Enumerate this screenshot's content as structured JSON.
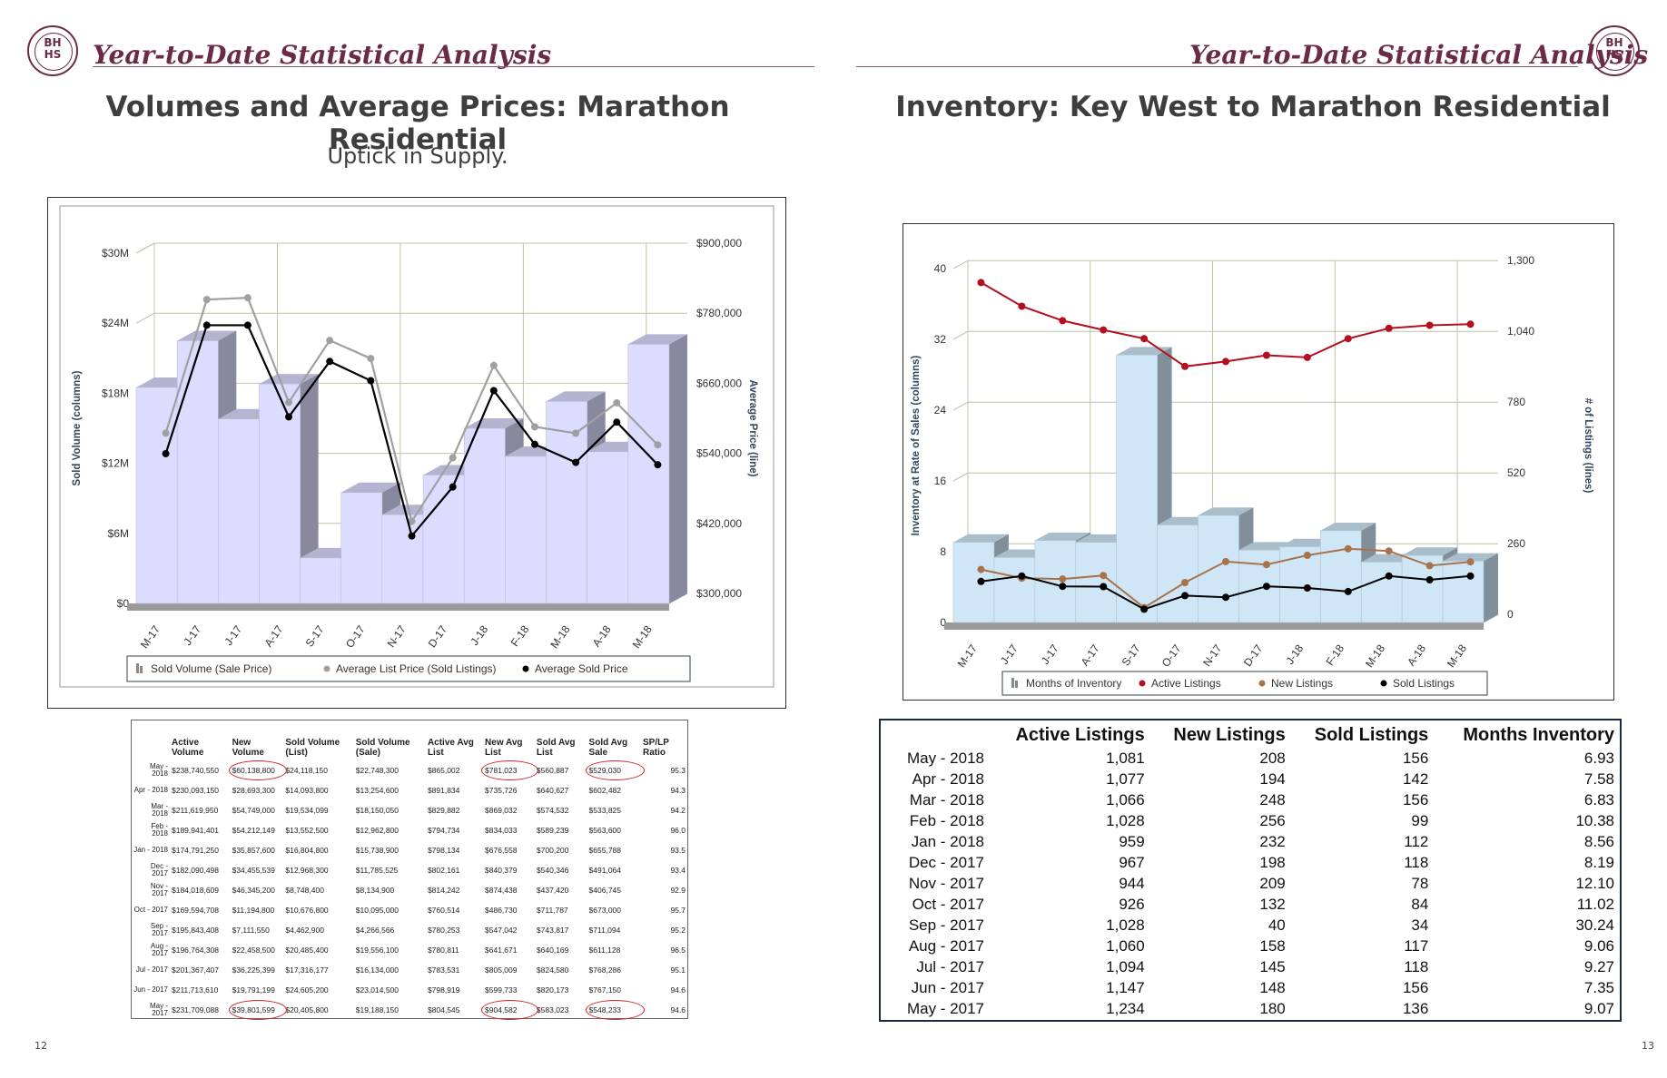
{
  "banner": {
    "title": "Year-to-Date Statistical Analysis",
    "logo_text": "BH\nHS"
  },
  "left_page": {
    "title": "Volumes and Average Prices:  Marathon Residential",
    "subtitle": "Uptick in Supply.",
    "page_number": "12"
  },
  "right_page": {
    "title": "Inventory:  Key West to Marathon Residential",
    "page_number": "13"
  },
  "colors": {
    "brand": "#6b2a45",
    "bars_left": "#dcdcff",
    "bars_right": "#cfe6f7",
    "active": "#b30f1e",
    "new": "#a8734a",
    "sold": "#000000",
    "list_line": "#a0a0a0",
    "circle": "#cc2222"
  },
  "chart_data": [
    {
      "type": "bar",
      "categories": [
        "M-17",
        "J-17",
        "J-17",
        "A-17",
        "S-17",
        "O-17",
        "N-17",
        "D-17",
        "J-18",
        "F-18",
        "M-18",
        "A-18",
        "M-18"
      ],
      "ylabel": "Sold Volume (columns)",
      "y2label": "Average Price (line)",
      "y_ticks": [
        "$0",
        "$6M",
        "$12M",
        "$18M",
        "$24M",
        "$30M"
      ],
      "y2_ticks": [
        "$300,000",
        "$420,000",
        "$540,000",
        "$660,000",
        "$780,000",
        "$900,000"
      ],
      "ylim": [
        0,
        30000000
      ],
      "y2lim": [
        300000,
        900000
      ],
      "grid": true,
      "legend_position": "bottom",
      "series": [
        {
          "name": "Sold Volume (Sale Price)",
          "kind": "bar",
          "values": [
            18500000,
            22500000,
            15800000,
            18800000,
            3900000,
            9500000,
            7600000,
            11000000,
            15000000,
            12600000,
            17300000,
            13000000,
            22200000
          ]
        },
        {
          "name": "Average List Price (Sold Listings)",
          "kind": "line",
          "values": [
            583000,
            812000,
            815000,
            636000,
            742000,
            711000,
            432000,
            541000,
            699000,
            594000,
            583000,
            635000,
            563000
          ]
        },
        {
          "name": "Average Sold Price",
          "kind": "line",
          "values": [
            548000,
            768000,
            768000,
            611000,
            706000,
            673000,
            407000,
            491000,
            656000,
            564000,
            533000,
            602000,
            529000
          ]
        }
      ]
    },
    {
      "type": "bar",
      "categories": [
        "M-17",
        "J-17",
        "J-17",
        "A-17",
        "S-17",
        "O-17",
        "N-17",
        "D-17",
        "J-18",
        "F-18",
        "M-18",
        "A-18",
        "M-18"
      ],
      "ylabel": "Inventory at Rate of Sales (columns)",
      "y2label": "# of Listings (lines)",
      "y_ticks": [
        "0",
        "8",
        "16",
        "24",
        "32",
        "40"
      ],
      "y2_ticks": [
        "0",
        "260",
        "520",
        "780",
        "1,040",
        "1,300"
      ],
      "ylim": [
        0,
        40
      ],
      "y2lim": [
        0,
        1300
      ],
      "grid": true,
      "legend_position": "bottom",
      "series": [
        {
          "name": "Months of Inventory",
          "kind": "bar",
          "values": [
            9.07,
            7.35,
            9.27,
            9.06,
            30.24,
            11.02,
            12.1,
            8.19,
            8.56,
            10.38,
            6.83,
            7.58,
            6.93
          ]
        },
        {
          "name": "Active Listings",
          "kind": "line",
          "values": [
            1234,
            1147,
            1094,
            1060,
            1028,
            926,
            944,
            967,
            959,
            1028,
            1066,
            1077,
            1081
          ]
        },
        {
          "name": "New Listings",
          "kind": "line",
          "values": [
            180,
            148,
            145,
            158,
            40,
            132,
            209,
            198,
            232,
            256,
            248,
            194,
            208
          ]
        },
        {
          "name": "Sold Listings",
          "kind": "line",
          "values": [
            136,
            156,
            118,
            117,
            34,
            84,
            78,
            118,
            112,
            99,
            156,
            142,
            156
          ]
        }
      ]
    },
    {
      "type": "table",
      "headers": [
        "",
        "Active Volume",
        "New Volume",
        "Sold Volume (List)",
        "Sold Volume (Sale)",
        "Active Avg List",
        "New Avg List",
        "Sold Avg List",
        "Sold Avg Sale",
        "SP/LP Ratio"
      ],
      "rows": [
        [
          "May - 2018",
          "$238,740,550",
          "$60,138,800",
          "$24,118,150",
          "$22,748,300",
          "$865,002",
          "$781,023",
          "$560,887",
          "$529,030",
          "95.3"
        ],
        [
          "Apr - 2018",
          "$230,093,150",
          "$28,693,300",
          "$14,093,800",
          "$13,254,600",
          "$891,834",
          "$735,726",
          "$640,627",
          "$602,482",
          "94.3"
        ],
        [
          "Mar - 2018",
          "$211,619,950",
          "$54,749,000",
          "$19,534,099",
          "$18,150,050",
          "$829,882",
          "$869,032",
          "$574,532",
          "$533,825",
          "94.2"
        ],
        [
          "Feb - 2018",
          "$189,941,401",
          "$54,212,149",
          "$13,552,500",
          "$12,962,800",
          "$794,734",
          "$834,033",
          "$589,239",
          "$563,600",
          "96.0"
        ],
        [
          "Jan - 2018",
          "$174,791,250",
          "$35,857,600",
          "$16,804,800",
          "$15,738,900",
          "$798,134",
          "$676,558",
          "$700,200",
          "$655,788",
          "93.5"
        ],
        [
          "Dec - 2017",
          "$182,090,498",
          "$34,455,539",
          "$12,968,300",
          "$11,785,525",
          "$802,161",
          "$840,379",
          "$540,346",
          "$491,064",
          "93.4"
        ],
        [
          "Nov - 2017",
          "$184,018,609",
          "$46,345,200",
          "$8,748,400",
          "$8,134,900",
          "$814,242",
          "$874,438",
          "$437,420",
          "$406,745",
          "92.9"
        ],
        [
          "Oct - 2017",
          "$169,594,708",
          "$11,194,800",
          "$10,676,800",
          "$10,095,000",
          "$760,514",
          "$486,730",
          "$711,787",
          "$673,000",
          "95.7"
        ],
        [
          "Sep - 2017",
          "$195,843,408",
          "$7,111,550",
          "$4,462,900",
          "$4,266,566",
          "$780,253",
          "$547,042",
          "$743,817",
          "$711,094",
          "95.2"
        ],
        [
          "Aug - 2017",
          "$196,764,308",
          "$22,458,500",
          "$20,485,400",
          "$19,556,100",
          "$780,811",
          "$641,671",
          "$640,169",
          "$611,128",
          "96.5"
        ],
        [
          "Jul - 2017",
          "$201,367,407",
          "$36,225,399",
          "$17,316,177",
          "$16,134,000",
          "$783,531",
          "$805,009",
          "$824,580",
          "$768,286",
          "95.1"
        ],
        [
          "Jun - 2017",
          "$211,713,610",
          "$19,791,199",
          "$24,605,200",
          "$23,014,500",
          "$798,919",
          "$599,733",
          "$820,173",
          "$767,150",
          "94.6"
        ],
        [
          "May - 2017",
          "$231,709,088",
          "$39,801,599",
          "$20,405,800",
          "$19,188,150",
          "$804,545",
          "$904,582",
          "$583,023",
          "$548,233",
          "94.6"
        ]
      ]
    },
    {
      "type": "table",
      "headers": [
        "",
        "Active Listings",
        "New Listings",
        "Sold Listings",
        "Months Inventory"
      ],
      "rows": [
        [
          "May - 2018",
          "1,081",
          "208",
          "156",
          "6.93"
        ],
        [
          "Apr - 2018",
          "1,077",
          "194",
          "142",
          "7.58"
        ],
        [
          "Mar - 2018",
          "1,066",
          "248",
          "156",
          "6.83"
        ],
        [
          "Feb - 2018",
          "1,028",
          "256",
          "99",
          "10.38"
        ],
        [
          "Jan - 2018",
          "959",
          "232",
          "112",
          "8.56"
        ],
        [
          "Dec - 2017",
          "967",
          "198",
          "118",
          "8.19"
        ],
        [
          "Nov - 2017",
          "944",
          "209",
          "78",
          "12.10"
        ],
        [
          "Oct - 2017",
          "926",
          "132",
          "84",
          "11.02"
        ],
        [
          "Sep - 2017",
          "1,028",
          "40",
          "34",
          "30.24"
        ],
        [
          "Aug - 2017",
          "1,060",
          "158",
          "117",
          "9.06"
        ],
        [
          "Jul - 2017",
          "1,094",
          "145",
          "118",
          "9.27"
        ],
        [
          "Jun - 2017",
          "1,147",
          "148",
          "156",
          "7.35"
        ],
        [
          "May - 2017",
          "1,234",
          "180",
          "136",
          "9.07"
        ]
      ]
    }
  ]
}
